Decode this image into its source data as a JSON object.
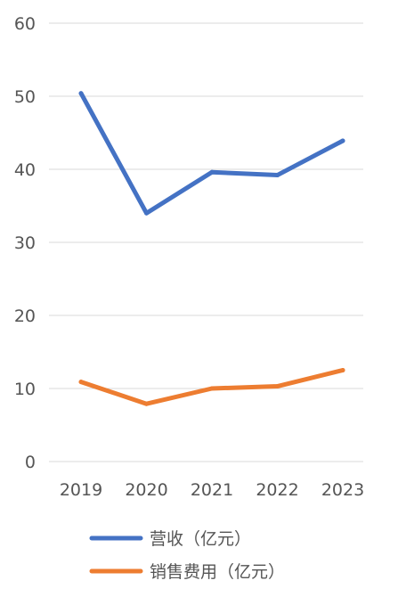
{
  "chart_data": {
    "type": "line",
    "categories": [
      "2019",
      "2020",
      "2021",
      "2022",
      "2023"
    ],
    "series": [
      {
        "name": "营收（亿元）",
        "values": [
          50.4,
          34.0,
          39.6,
          39.2,
          43.9
        ],
        "color": "#4472c4"
      },
      {
        "name": "销售费用（亿元）",
        "values": [
          10.9,
          7.9,
          10.0,
          10.3,
          12.5
        ],
        "color": "#ed7d31"
      }
    ],
    "ylim": [
      0,
      60
    ],
    "yticks": [
      "0",
      "10",
      "20",
      "30",
      "40",
      "50",
      "60"
    ],
    "grid": true,
    "legend_position": "bottom"
  }
}
